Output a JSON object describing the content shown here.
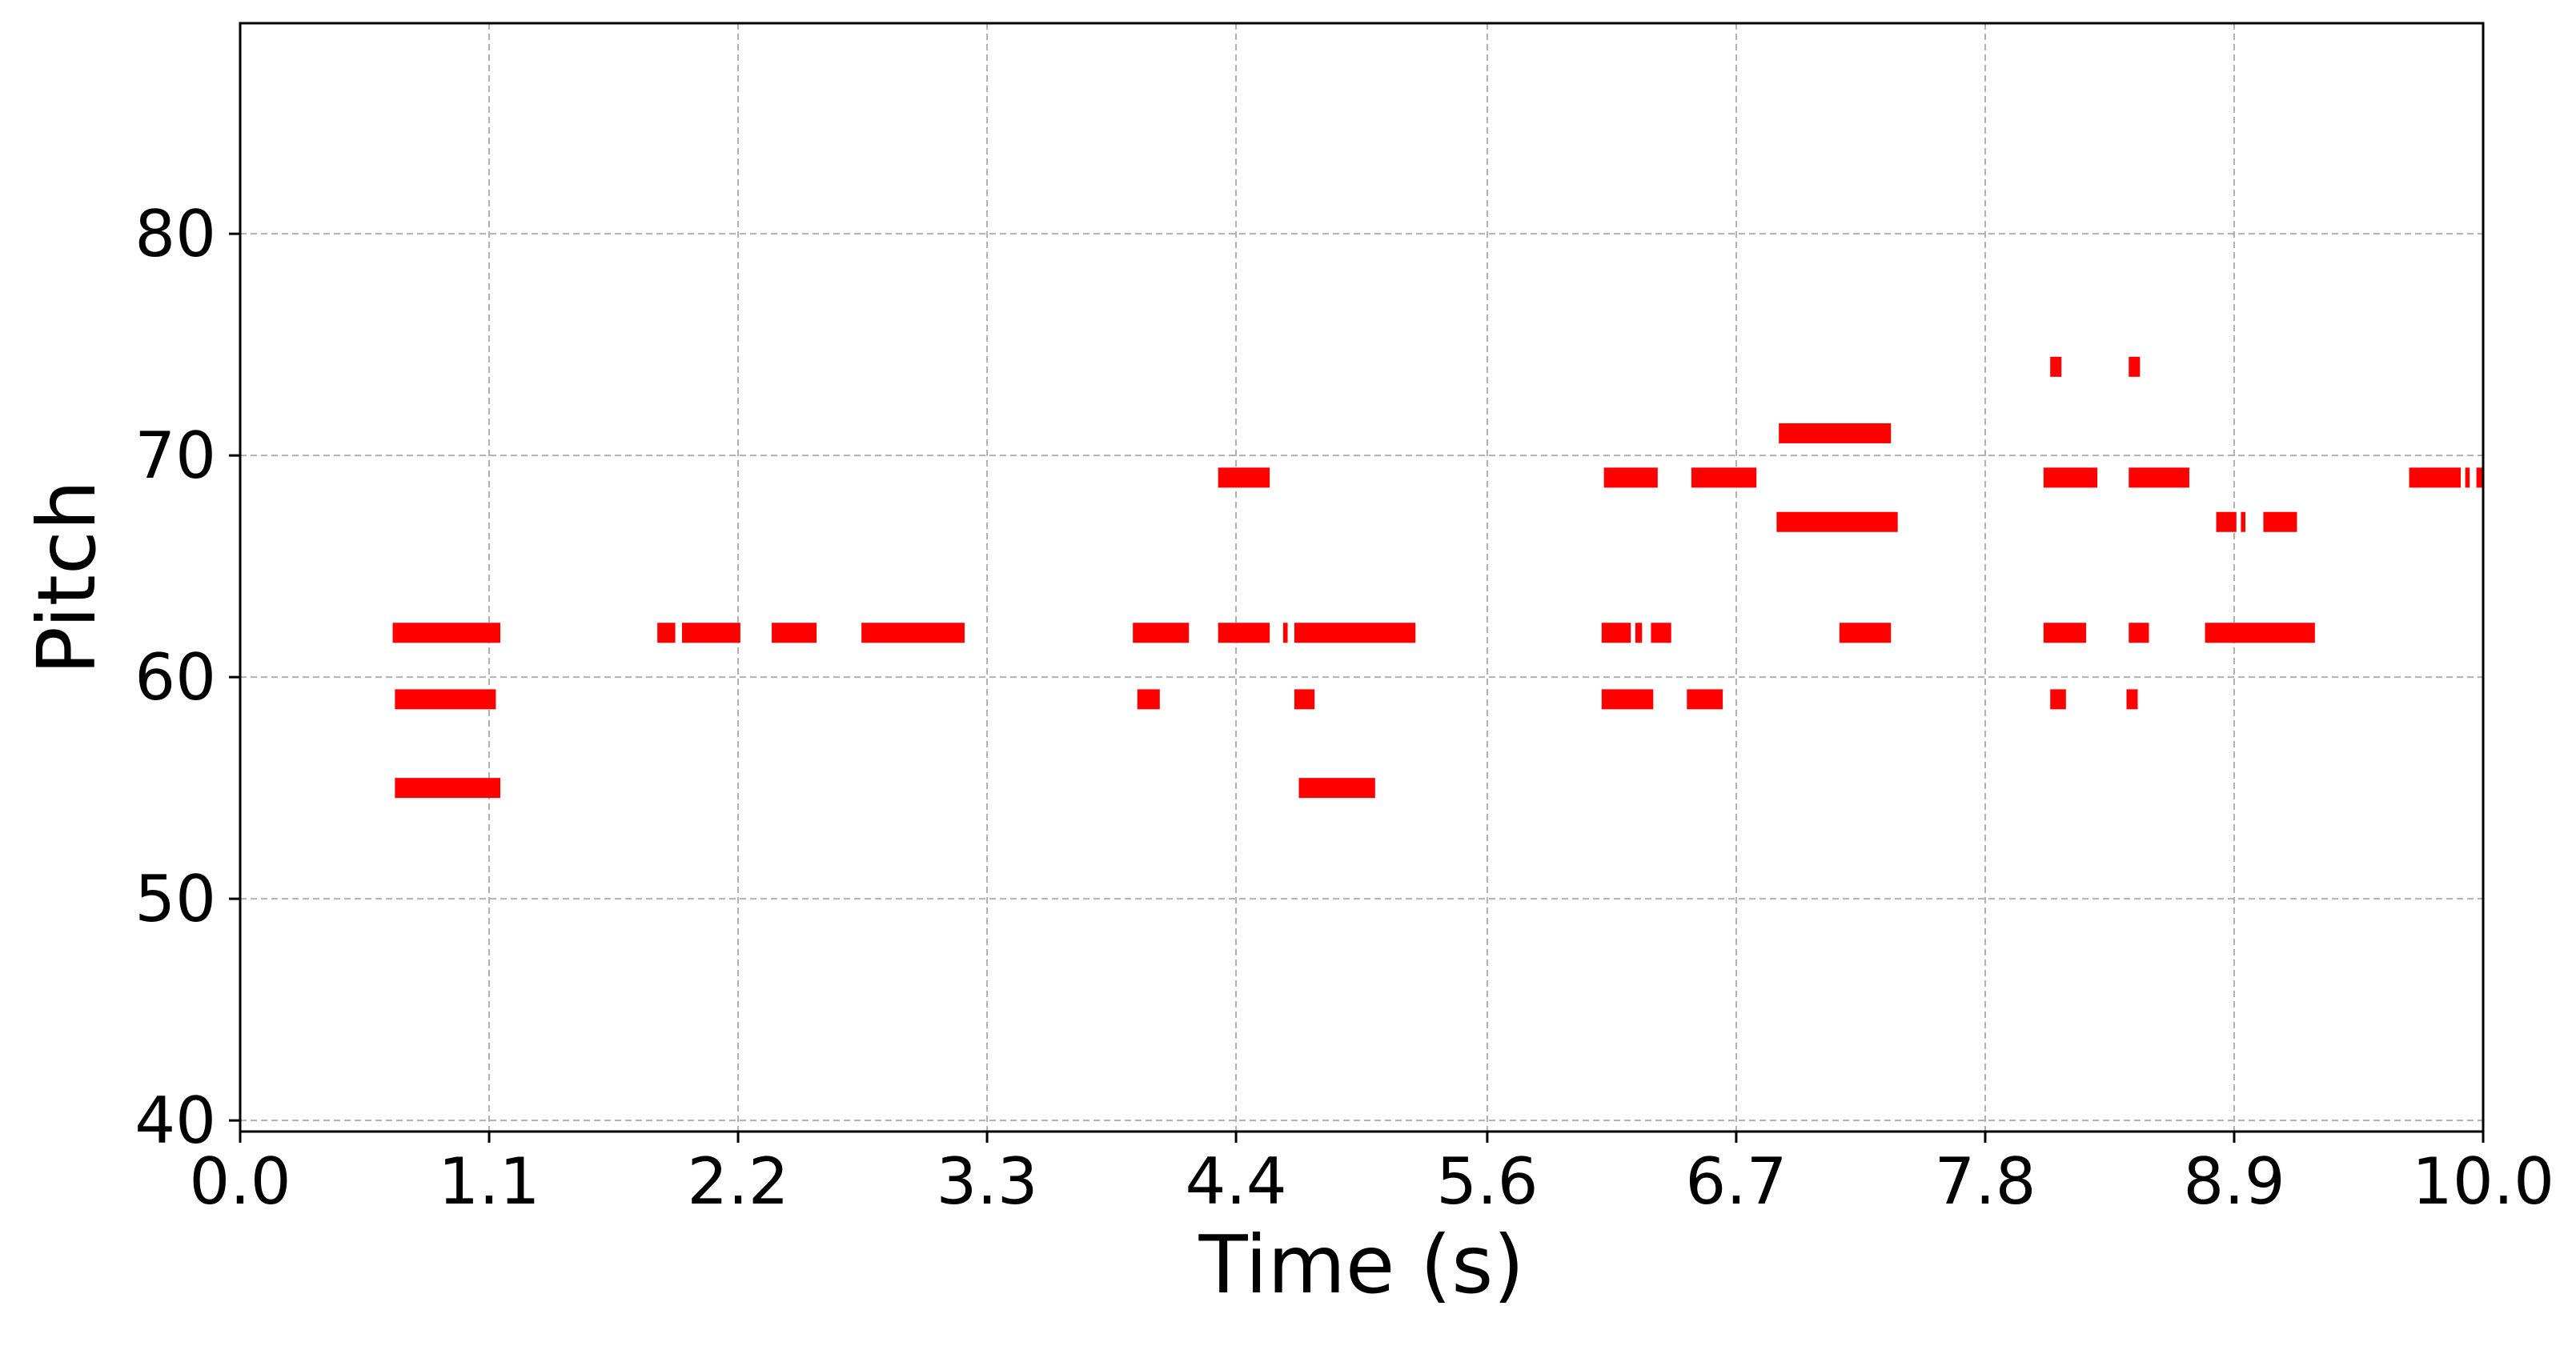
{
  "chart_data": {
    "type": "piano-roll",
    "xlabel": "Time (s)",
    "ylabel": "Pitch",
    "xlim": [
      0.0,
      10.0
    ],
    "ylim": [
      39.5,
      89.5
    ],
    "xticks": [
      "0.0",
      "1.1",
      "2.2",
      "3.3",
      "4.4",
      "5.6",
      "6.7",
      "7.8",
      "8.9",
      "10.0"
    ],
    "xtick_values": [
      0.0,
      1.11,
      2.22,
      3.33,
      4.44,
      5.56,
      6.67,
      7.78,
      8.89,
      10.0
    ],
    "yticks": [
      "40",
      "50",
      "60",
      "70",
      "80"
    ],
    "ytick_values": [
      40,
      50,
      60,
      70,
      80
    ],
    "grid": true,
    "color": "#ff0000",
    "notes": [
      {
        "pitch": 62,
        "start": 0.68,
        "end": 1.16
      },
      {
        "pitch": 59,
        "start": 0.69,
        "end": 1.14
      },
      {
        "pitch": 55,
        "start": 0.69,
        "end": 1.16
      },
      {
        "pitch": 62,
        "start": 1.86,
        "end": 1.94
      },
      {
        "pitch": 62,
        "start": 1.97,
        "end": 2.23
      },
      {
        "pitch": 62,
        "start": 2.37,
        "end": 2.57
      },
      {
        "pitch": 62,
        "start": 2.77,
        "end": 3.23
      },
      {
        "pitch": 62,
        "start": 3.98,
        "end": 4.23
      },
      {
        "pitch": 59,
        "start": 4.0,
        "end": 4.1
      },
      {
        "pitch": 69,
        "start": 4.36,
        "end": 4.59
      },
      {
        "pitch": 62,
        "start": 4.36,
        "end": 4.59
      },
      {
        "pitch": 62,
        "start": 4.65,
        "end": 4.67
      },
      {
        "pitch": 62,
        "start": 4.7,
        "end": 5.24
      },
      {
        "pitch": 59,
        "start": 4.7,
        "end": 4.79
      },
      {
        "pitch": 55,
        "start": 4.72,
        "end": 5.06
      },
      {
        "pitch": 69,
        "start": 6.08,
        "end": 6.32
      },
      {
        "pitch": 62,
        "start": 6.07,
        "end": 6.2
      },
      {
        "pitch": 62,
        "start": 6.22,
        "end": 6.25
      },
      {
        "pitch": 62,
        "start": 6.29,
        "end": 6.38
      },
      {
        "pitch": 59,
        "start": 6.07,
        "end": 6.3
      },
      {
        "pitch": 59,
        "start": 6.45,
        "end": 6.61
      },
      {
        "pitch": 69,
        "start": 6.47,
        "end": 6.76
      },
      {
        "pitch": 71,
        "start": 6.86,
        "end": 7.36
      },
      {
        "pitch": 67,
        "start": 6.85,
        "end": 7.39
      },
      {
        "pitch": 62,
        "start": 7.13,
        "end": 7.36
      },
      {
        "pitch": 74,
        "start": 8.07,
        "end": 8.12
      },
      {
        "pitch": 74,
        "start": 8.42,
        "end": 8.47
      },
      {
        "pitch": 69,
        "start": 8.04,
        "end": 8.28
      },
      {
        "pitch": 69,
        "start": 8.42,
        "end": 8.69
      },
      {
        "pitch": 67,
        "start": 8.81,
        "end": 8.9
      },
      {
        "pitch": 67,
        "start": 8.92,
        "end": 8.94
      },
      {
        "pitch": 67,
        "start": 9.02,
        "end": 9.17
      },
      {
        "pitch": 62,
        "start": 8.04,
        "end": 8.23
      },
      {
        "pitch": 62,
        "start": 8.42,
        "end": 8.51
      },
      {
        "pitch": 62,
        "start": 8.76,
        "end": 9.25
      },
      {
        "pitch": 59,
        "start": 8.07,
        "end": 8.14
      },
      {
        "pitch": 59,
        "start": 8.41,
        "end": 8.46
      },
      {
        "pitch": 69,
        "start": 9.67,
        "end": 9.9
      },
      {
        "pitch": 69,
        "start": 9.92,
        "end": 9.94
      },
      {
        "pitch": 69,
        "start": 9.97,
        "end": 10.04
      }
    ]
  }
}
